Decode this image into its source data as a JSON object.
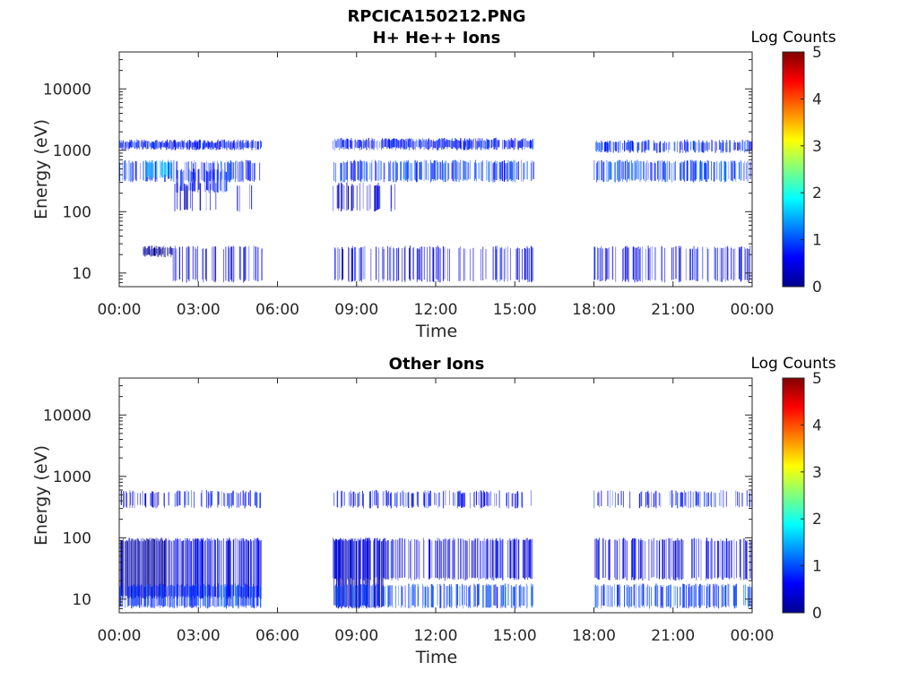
{
  "figure": {
    "title_line1": "RPCICA150212.PNG"
  },
  "chart_data": [
    {
      "type": "heatmap",
      "title": "H+ He++ Ions",
      "xlabel": "Time",
      "ylabel": "Energy (eV)",
      "x_tick_labels": [
        "00:00",
        "03:00",
        "06:00",
        "09:00",
        "12:00",
        "15:00",
        "18:00",
        "21:00",
        "00:00"
      ],
      "x_ticks_hours": [
        0,
        3,
        6,
        9,
        12,
        15,
        18,
        21,
        24
      ],
      "xlim_hours": [
        0,
        24
      ],
      "y_scale": "log",
      "ylim": [
        6,
        40000
      ],
      "y_tick_labels": [
        "10",
        "100",
        "1000",
        "10000"
      ],
      "y_ticks": [
        10,
        100,
        1000,
        10000
      ],
      "colorbar": {
        "label": "Log Counts",
        "min": 0,
        "max": 5,
        "tick_labels": [
          "0",
          "1",
          "2",
          "3",
          "4",
          "5"
        ],
        "colormap": "jet"
      },
      "data_gaps_hours": [
        [
          5.45,
          8.05
        ],
        [
          15.75,
          18.0
        ]
      ],
      "bands": [
        {
          "t": [
            0.0,
            5.4
          ],
          "e": [
            1000,
            1500
          ],
          "level": 0.7,
          "density": 0.9
        },
        {
          "t": [
            8.1,
            15.7
          ],
          "e": [
            1000,
            1600
          ],
          "level": 0.7,
          "density": 0.9
        },
        {
          "t": [
            18.0,
            24.0
          ],
          "e": [
            900,
            1500
          ],
          "level": 0.8,
          "density": 0.6
        },
        {
          "t": [
            0.0,
            5.4
          ],
          "e": [
            300,
            700
          ],
          "level": 0.8,
          "density": 0.5
        },
        {
          "t": [
            1.0,
            2.1
          ],
          "e": [
            350,
            700
          ],
          "level": 1.6,
          "density": 0.5
        },
        {
          "t": [
            2.1,
            4.1
          ],
          "e": [
            200,
            500
          ],
          "level": 0.8,
          "density": 0.6
        },
        {
          "t": [
            8.1,
            15.7
          ],
          "e": [
            300,
            700
          ],
          "level": 0.9,
          "density": 0.6
        },
        {
          "t": [
            18.0,
            24.0
          ],
          "e": [
            300,
            700
          ],
          "level": 0.9,
          "density": 0.5
        },
        {
          "t": [
            8.1,
            10.5
          ],
          "e": [
            100,
            300
          ],
          "level": 0.4,
          "density": 0.3
        },
        {
          "t": [
            2.0,
            5.4
          ],
          "e": [
            100,
            300
          ],
          "level": 0.4,
          "density": 0.2
        },
        {
          "t": [
            0.9,
            2.0
          ],
          "e": [
            18,
            28
          ],
          "level": 0.0,
          "density": 0.9
        },
        {
          "t": [
            2.0,
            5.4
          ],
          "e": [
            7,
            28
          ],
          "level": 0.5,
          "density": 0.35
        },
        {
          "t": [
            8.1,
            15.7
          ],
          "e": [
            7,
            28
          ],
          "level": 0.5,
          "density": 0.4
        },
        {
          "t": [
            18.0,
            24.0
          ],
          "e": [
            7,
            28
          ],
          "level": 0.5,
          "density": 0.35
        }
      ]
    },
    {
      "type": "heatmap",
      "title": "Other Ions",
      "xlabel": "Time",
      "ylabel": "Energy (eV)",
      "x_tick_labels": [
        "00:00",
        "03:00",
        "06:00",
        "09:00",
        "12:00",
        "15:00",
        "18:00",
        "21:00",
        "00:00"
      ],
      "x_ticks_hours": [
        0,
        3,
        6,
        9,
        12,
        15,
        18,
        21,
        24
      ],
      "xlim_hours": [
        0,
        24
      ],
      "y_scale": "log",
      "ylim": [
        6,
        40000
      ],
      "y_tick_labels": [
        "10",
        "100",
        "1000",
        "10000"
      ],
      "y_ticks": [
        10,
        100,
        1000,
        10000
      ],
      "colorbar": {
        "label": "Log Counts",
        "min": 0,
        "max": 5,
        "tick_labels": [
          "0",
          "1",
          "2",
          "3",
          "4",
          "5"
        ],
        "colormap": "jet"
      },
      "data_gaps_hours": [
        [
          5.45,
          8.05
        ],
        [
          15.75,
          18.0
        ]
      ],
      "bands": [
        {
          "t": [
            0.0,
            2.0
          ],
          "e": [
            10,
            100
          ],
          "level": 0.1,
          "density": 0.95
        },
        {
          "t": [
            2.0,
            5.4
          ],
          "e": [
            10,
            100
          ],
          "level": 0.5,
          "density": 0.7
        },
        {
          "t": [
            0.0,
            1.8
          ],
          "e": [
            300,
            600
          ],
          "level": 0.3,
          "density": 0.5
        },
        {
          "t": [
            1.8,
            5.4
          ],
          "e": [
            300,
            600
          ],
          "level": 0.7,
          "density": 0.4
        },
        {
          "t": [
            0.0,
            5.4
          ],
          "e": [
            7,
            18
          ],
          "level": 0.9,
          "density": 0.7
        },
        {
          "t": [
            8.1,
            10.0
          ],
          "e": [
            7,
            100
          ],
          "level": 0.2,
          "density": 0.7
        },
        {
          "t": [
            8.1,
            15.7
          ],
          "e": [
            20,
            100
          ],
          "level": 0.5,
          "density": 0.5
        },
        {
          "t": [
            8.1,
            15.7
          ],
          "e": [
            7,
            18
          ],
          "level": 0.9,
          "density": 0.55
        },
        {
          "t": [
            8.1,
            15.7
          ],
          "e": [
            300,
            600
          ],
          "level": 0.6,
          "density": 0.45
        },
        {
          "t": [
            18.0,
            24.0
          ],
          "e": [
            20,
            100
          ],
          "level": 0.5,
          "density": 0.45
        },
        {
          "t": [
            18.0,
            24.0
          ],
          "e": [
            7,
            18
          ],
          "level": 0.9,
          "density": 0.5
        },
        {
          "t": [
            18.0,
            24.0
          ],
          "e": [
            300,
            600
          ],
          "level": 0.7,
          "density": 0.35
        }
      ]
    }
  ]
}
